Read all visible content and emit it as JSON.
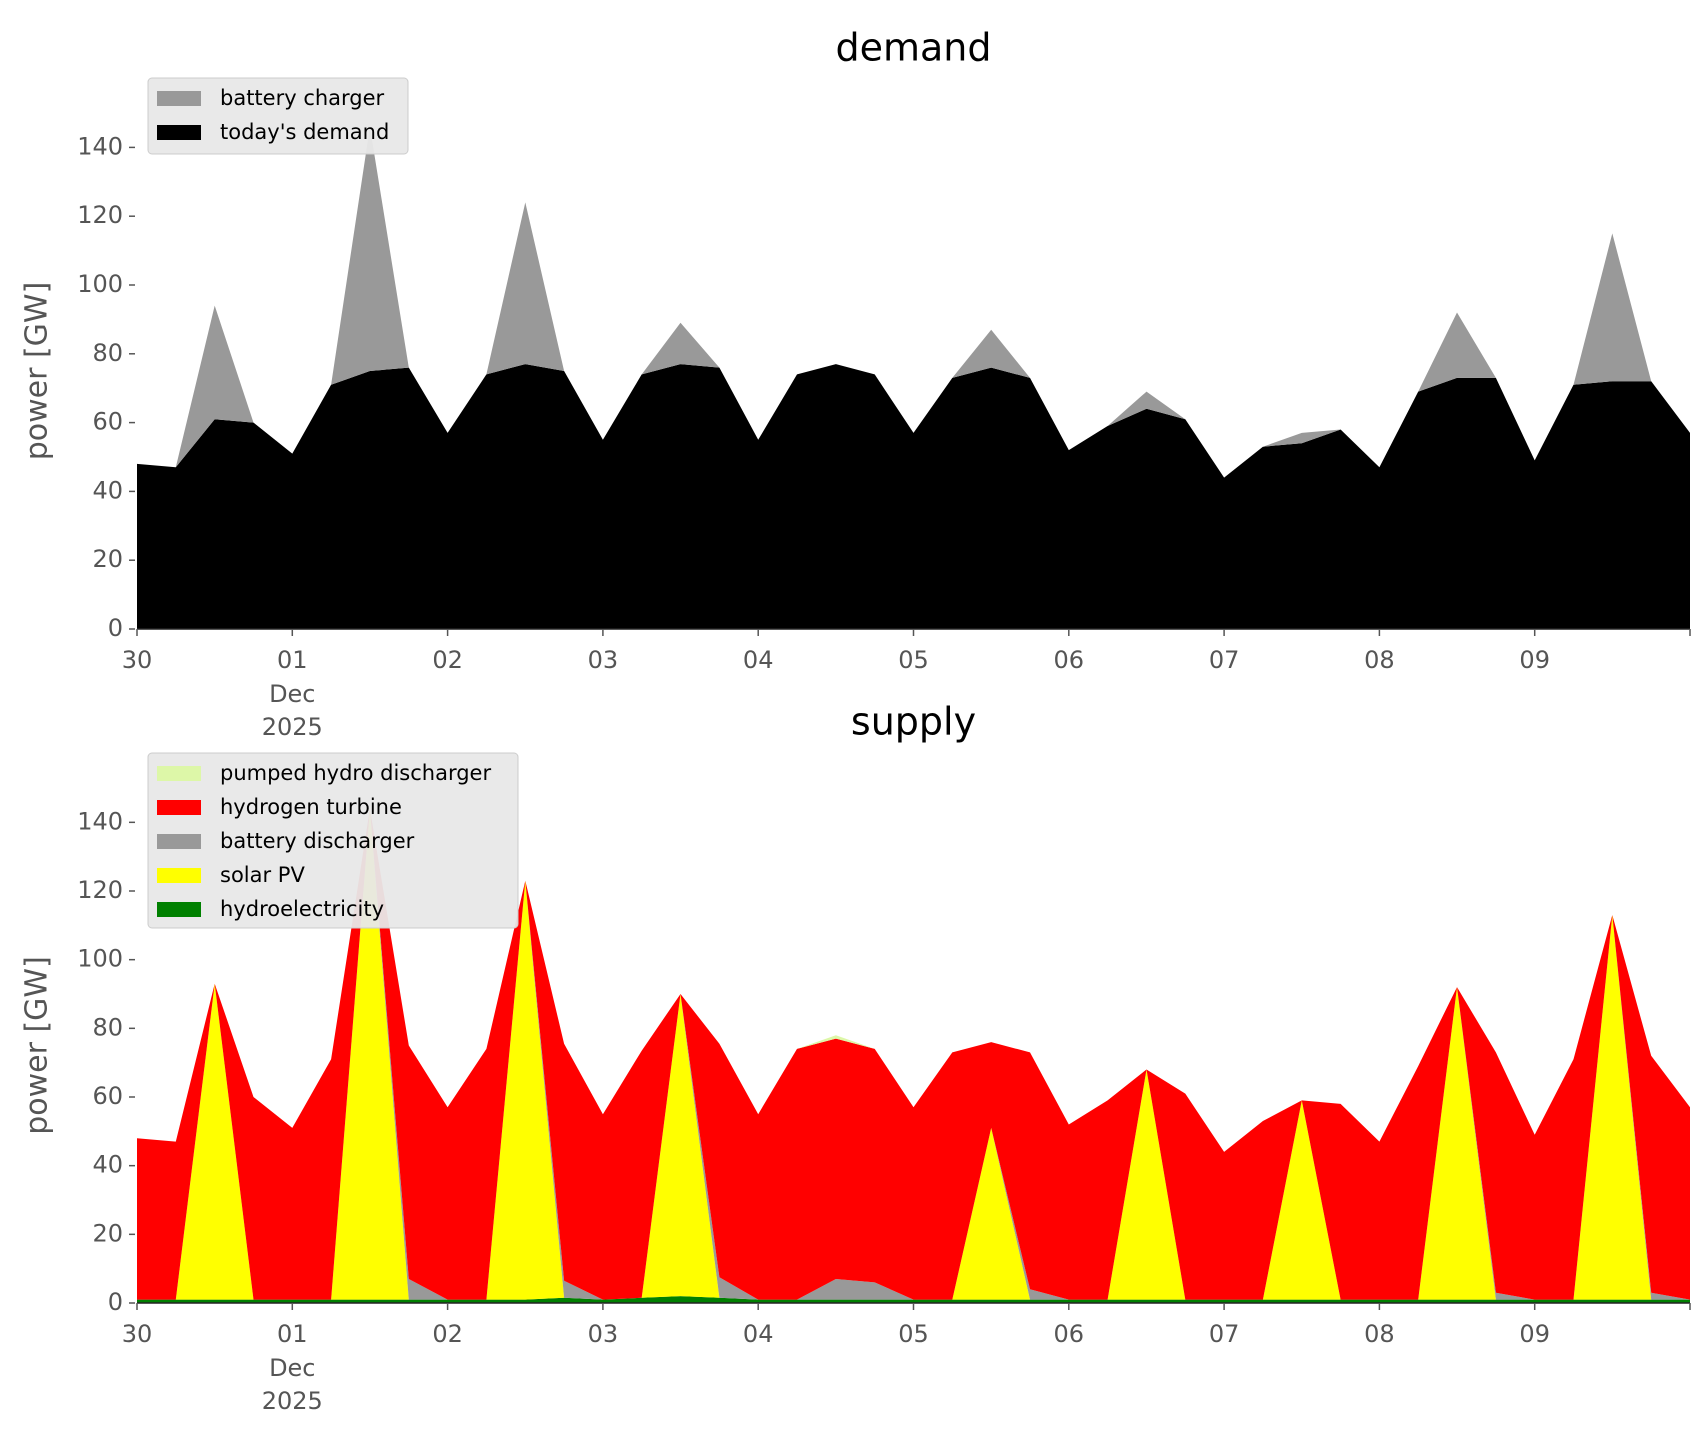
{
  "chart_data": [
    {
      "type": "area",
      "stacked": true,
      "title": "demand",
      "xlabel": "",
      "ylabel": "power [GW]",
      "ylim": [
        0,
        150
      ],
      "yticks": [
        0,
        20,
        40,
        60,
        80,
        100,
        120,
        140
      ],
      "xlim": [
        0,
        10
      ],
      "x_tick_labels": [
        "30",
        "01",
        "02",
        "03",
        "04",
        "05",
        "06",
        "07",
        "08",
        "09"
      ],
      "x_tick_sublabels": [
        "Dec",
        "2025"
      ],
      "legend_position": "top-left",
      "x": [
        0,
        0.25,
        0.5,
        0.75,
        1,
        1.25,
        1.5,
        1.75,
        2,
        2.25,
        2.5,
        2.75,
        3,
        3.25,
        3.5,
        3.75,
        4,
        4.25,
        4.5,
        4.75,
        5,
        5.25,
        5.5,
        5.75,
        6,
        6.25,
        6.5,
        6.75,
        7,
        7.25,
        7.5,
        7.75,
        8,
        8.25,
        8.5,
        8.75,
        9,
        9.25,
        9.5,
        9.75,
        10
      ],
      "series": [
        {
          "name": "today's demand",
          "color": "#000000",
          "values": [
            48,
            47,
            61,
            60,
            51,
            71,
            75,
            76,
            57,
            74,
            77,
            75,
            55,
            74,
            77,
            76,
            55,
            74,
            77,
            74,
            57,
            73,
            76,
            73,
            52,
            59,
            64,
            61,
            44,
            53,
            54,
            58,
            47,
            69,
            73,
            73,
            49,
            71,
            72,
            72,
            57
          ]
        },
        {
          "name": "battery charger",
          "color": "#999999",
          "values": [
            0,
            0,
            33,
            0,
            0,
            0,
            71,
            0,
            0,
            0,
            47,
            0,
            0,
            0,
            12,
            0,
            0,
            0,
            0,
            0,
            0,
            0,
            11,
            0,
            0,
            0,
            5,
            0,
            0,
            0,
            3,
            0,
            0,
            0,
            19,
            0,
            0,
            0,
            43,
            0,
            0
          ]
        }
      ]
    },
    {
      "type": "area",
      "stacked": true,
      "title": "supply",
      "xlabel": "",
      "ylabel": "power [GW]",
      "ylim": [
        0,
        150
      ],
      "yticks": [
        0,
        20,
        40,
        60,
        80,
        100,
        120,
        140
      ],
      "xlim": [
        0,
        10
      ],
      "x_tick_labels": [
        "30",
        "01",
        "02",
        "03",
        "04",
        "05",
        "06",
        "07",
        "08",
        "09"
      ],
      "x_tick_sublabels": [
        "Dec",
        "2025"
      ],
      "legend_position": "top-left",
      "x": [
        0,
        0.25,
        0.5,
        0.75,
        1,
        1.25,
        1.5,
        1.75,
        2,
        2.25,
        2.5,
        2.75,
        3,
        3.25,
        3.5,
        3.75,
        4,
        4.25,
        4.5,
        4.75,
        5,
        5.25,
        5.5,
        5.75,
        6,
        6.25,
        6.5,
        6.75,
        7,
        7.25,
        7.5,
        7.75,
        8,
        8.25,
        8.5,
        8.75,
        9,
        9.25,
        9.5,
        9.75,
        10
      ],
      "series": [
        {
          "name": "hydroelectricity",
          "color": "#008000",
          "values": [
            1,
            1,
            1,
            1,
            1,
            1,
            1,
            1,
            1,
            1,
            1,
            1.5,
            1,
            1.5,
            2,
            1.5,
            1,
            1,
            1,
            1,
            1,
            1,
            1,
            1,
            1,
            1,
            1,
            1,
            1,
            1,
            1,
            1,
            1,
            1,
            1,
            1,
            1,
            1,
            1,
            1,
            1
          ]
        },
        {
          "name": "solar PV",
          "color": "#ffff00",
          "values": [
            0,
            0,
            92,
            0,
            0,
            0,
            143,
            0,
            0,
            0,
            122,
            0,
            0,
            0,
            88,
            0,
            0,
            0,
            0,
            0,
            0,
            0,
            50,
            0,
            0,
            0,
            67,
            0,
            0,
            0,
            58,
            0,
            0,
            0,
            91,
            0,
            0,
            0,
            112,
            0,
            0
          ]
        },
        {
          "name": "battery discharger",
          "color": "#999999",
          "values": [
            0,
            0,
            0,
            0,
            0,
            0,
            0,
            6,
            0,
            0,
            0,
            5,
            0,
            0,
            0,
            6,
            0,
            0,
            6,
            5,
            0,
            0,
            0,
            3,
            0,
            0,
            0,
            0,
            0,
            0,
            0,
            0,
            0,
            0,
            0,
            2,
            0,
            0,
            0,
            2,
            0
          ]
        },
        {
          "name": "hydrogen turbine",
          "color": "#ff0000",
          "values": [
            47,
            46,
            0,
            59,
            50,
            70,
            0,
            68,
            56,
            73,
            0,
            69,
            54,
            72,
            0,
            68,
            54,
            73,
            70,
            68,
            56,
            72,
            25,
            69,
            51,
            58,
            0,
            60,
            43,
            52,
            0,
            57,
            46,
            68,
            0,
            70,
            48,
            70,
            0,
            69,
            56
          ]
        },
        {
          "name": "pumped hydro discharger",
          "color": "#ddf7a8",
          "values": [
            0,
            0,
            0,
            0,
            0,
            0,
            0,
            0,
            0,
            0,
            0,
            0,
            0,
            0,
            0,
            0,
            0,
            0,
            1,
            0,
            0,
            0,
            0,
            0,
            0,
            0,
            0,
            0,
            0,
            0,
            0,
            0,
            0,
            0,
            0,
            0,
            0,
            0,
            0,
            0,
            0
          ]
        }
      ]
    }
  ]
}
